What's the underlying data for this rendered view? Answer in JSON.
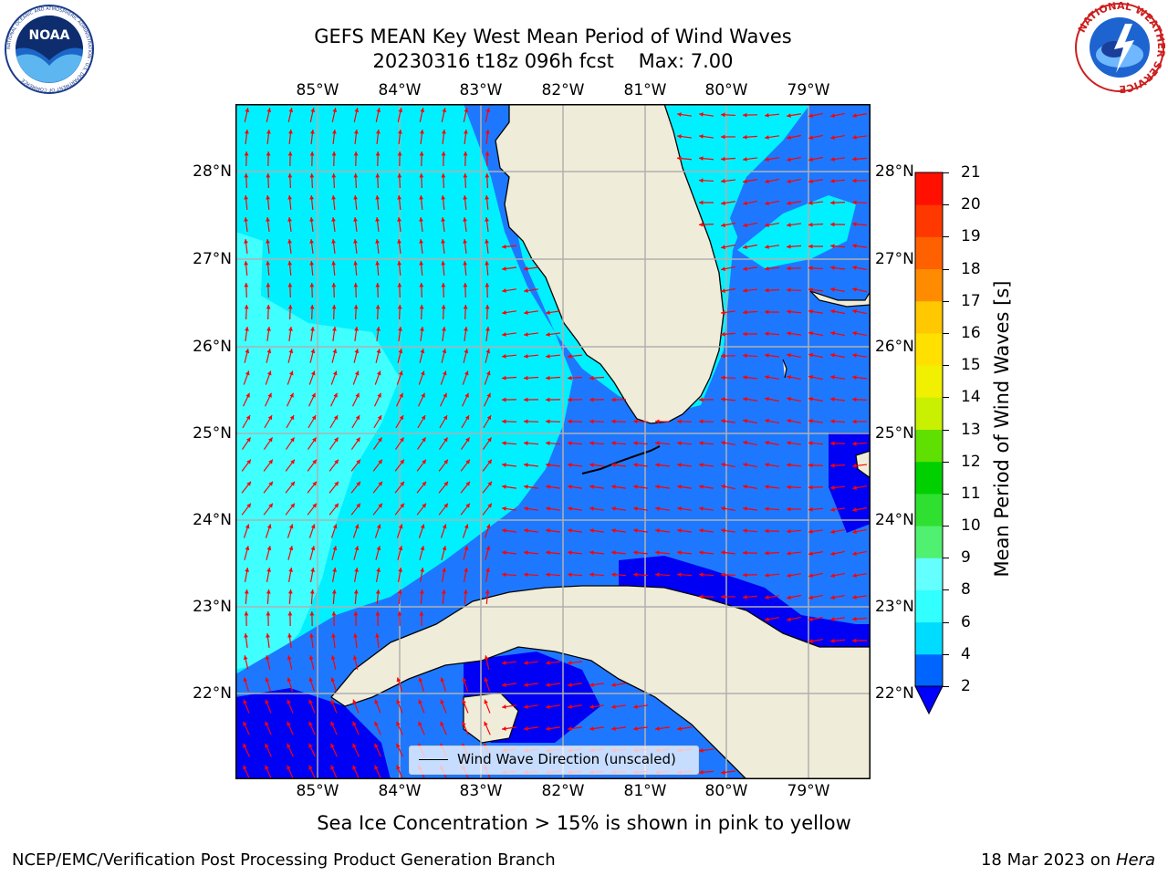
{
  "title": {
    "line1": "GEFS MEAN Key West Mean Period of Wind Waves",
    "line2": "20230316 t18z 096h fcst    Max: 7.00"
  },
  "axes": {
    "lon_labels": [
      "85°W",
      "84°W",
      "83°W",
      "82°W",
      "81°W",
      "80°W",
      "79°W"
    ],
    "lat_labels": [
      "28°N",
      "27°N",
      "26°N",
      "25°N",
      "24°N",
      "23°N",
      "22°N"
    ]
  },
  "colorbar": {
    "label": "Mean Period of Wind Waves [s]",
    "ticks": [
      "2",
      "4",
      "6",
      "8",
      "9",
      "10",
      "11",
      "12",
      "13",
      "14",
      "15",
      "16",
      "17",
      "18",
      "19",
      "20",
      "21"
    ],
    "colors": [
      "#0064ff",
      "#00dcff",
      "#32ffff",
      "#64ffff",
      "#96ffff",
      "#50f070",
      "#30e030",
      "#00d000",
      "#60e000",
      "#a0f000",
      "#c8f000",
      "#f0f000",
      "#ffe000",
      "#ffc800",
      "#ffb000",
      "#ff8c00",
      "#ff6000",
      "#ff3800",
      "#ff1000",
      "#ff0000"
    ],
    "extend_color": "#0000ff"
  },
  "legend": {
    "label": "Wind Wave Direction (unscaled)"
  },
  "note": "Sea Ice Concentration > 15% is shown in pink to yellow",
  "footer": {
    "left": "NCEP/EMC/Verification Post Processing Product Generation Branch",
    "right_date": "18 Mar 2023 on ",
    "right_host": "Hera"
  },
  "logos": {
    "left": {
      "text": "NOAA",
      "ring": "NATIONAL OCEANIC AND ATMOSPHERIC ADMINISTRATION · U.S. DEPARTMENT OF COMMERCE"
    },
    "right": {
      "ring": "NATIONAL WEATHER SERVICE"
    }
  },
  "field_colors": {
    "land": "#efedd9",
    "coast": "#000000",
    "arrow": "#ff0000",
    "grid": "#b0b0b0",
    "level_2_4": "#1e78ff",
    "level_4_6": "#00f0ff",
    "level_6_8": "#40ffff",
    "below_2": "#0000f5"
  }
}
